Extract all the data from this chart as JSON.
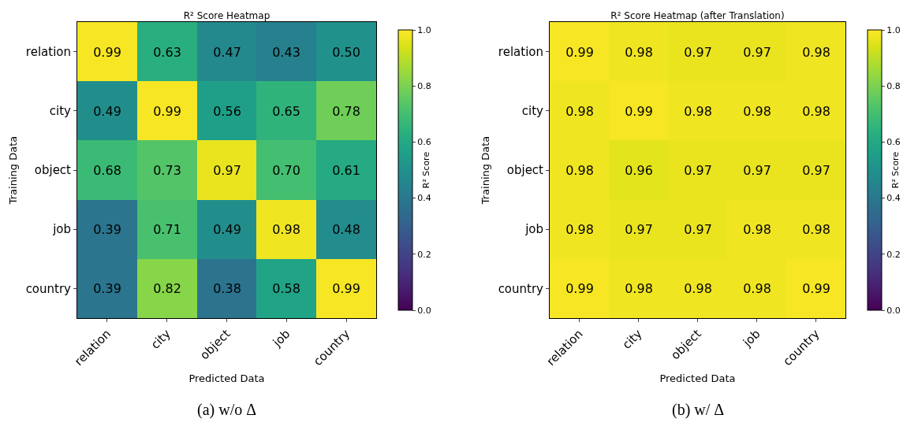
{
  "chart_data": [
    {
      "type": "heatmap",
      "title": "R² Score Heatmap",
      "xlabel": "Predicted Data",
      "ylabel": "Training Data",
      "clabel": "R² Score",
      "categories": [
        "relation",
        "city",
        "object",
        "job",
        "country"
      ],
      "y_categories": [
        "relation",
        "city",
        "object",
        "job",
        "country"
      ],
      "cells": [
        [
          0.99,
          0.63,
          0.47,
          0.43,
          0.5
        ],
        [
          0.49,
          0.99,
          0.56,
          0.65,
          0.78
        ],
        [
          0.68,
          0.73,
          0.97,
          0.7,
          0.61
        ],
        [
          0.39,
          0.71,
          0.49,
          0.98,
          0.48
        ],
        [
          0.39,
          0.82,
          0.38,
          0.58,
          0.99
        ]
      ],
      "cell_labels": [
        [
          "0.99",
          "0.63",
          "0.47",
          "0.43",
          "0.50"
        ],
        [
          "0.49",
          "0.99",
          "0.56",
          "0.65",
          "0.78"
        ],
        [
          "0.68",
          "0.73",
          "0.97",
          "0.70",
          "0.61"
        ],
        [
          "0.39",
          "0.71",
          "0.49",
          "0.98",
          "0.48"
        ],
        [
          "0.39",
          "0.82",
          "0.38",
          "0.58",
          "0.99"
        ]
      ],
      "clim": [
        0,
        1
      ],
      "cticks": [
        {
          "value": 0,
          "label": "0.0"
        },
        {
          "value": 0.2,
          "label": "0.2"
        },
        {
          "value": 0.4,
          "label": "0.4"
        },
        {
          "value": 0.6,
          "label": "0.6"
        },
        {
          "value": 0.8,
          "label": "0.8"
        },
        {
          "value": 1,
          "label": "1.0"
        }
      ],
      "annotations": [
        "(a) w/o Δ"
      ]
    },
    {
      "type": "heatmap",
      "title": "R² Score Heatmap (after Translation)",
      "xlabel": "Predicted Data",
      "ylabel": "Training Data",
      "clabel": "R² Score",
      "categories": [
        "relation",
        "city",
        "object",
        "job",
        "country"
      ],
      "y_categories": [
        "relation",
        "city",
        "object",
        "job",
        "country"
      ],
      "cells": [
        [
          0.99,
          0.98,
          0.97,
          0.97,
          0.98
        ],
        [
          0.98,
          0.99,
          0.98,
          0.98,
          0.98
        ],
        [
          0.98,
          0.96,
          0.97,
          0.97,
          0.97
        ],
        [
          0.98,
          0.97,
          0.97,
          0.98,
          0.98
        ],
        [
          0.99,
          0.98,
          0.98,
          0.98,
          0.99
        ]
      ],
      "cell_labels": [
        [
          "0.99",
          "0.98",
          "0.97",
          "0.97",
          "0.98"
        ],
        [
          "0.98",
          "0.99",
          "0.98",
          "0.98",
          "0.98"
        ],
        [
          "0.98",
          "0.96",
          "0.97",
          "0.97",
          "0.97"
        ],
        [
          "0.98",
          "0.97",
          "0.97",
          "0.98",
          "0.98"
        ],
        [
          "0.99",
          "0.98",
          "0.98",
          "0.98",
          "0.99"
        ]
      ],
      "clim": [
        0,
        1
      ],
      "cticks": [
        {
          "value": 0,
          "label": "0.0"
        },
        {
          "value": 0.2,
          "label": "0.2"
        },
        {
          "value": 0.4,
          "label": "0.4"
        },
        {
          "value": 0.6,
          "label": "0.6"
        },
        {
          "value": 0.8,
          "label": "0.8"
        },
        {
          "value": 1,
          "label": "1.0"
        }
      ],
      "annotations": [
        "(b) w/ Δ"
      ]
    }
  ]
}
